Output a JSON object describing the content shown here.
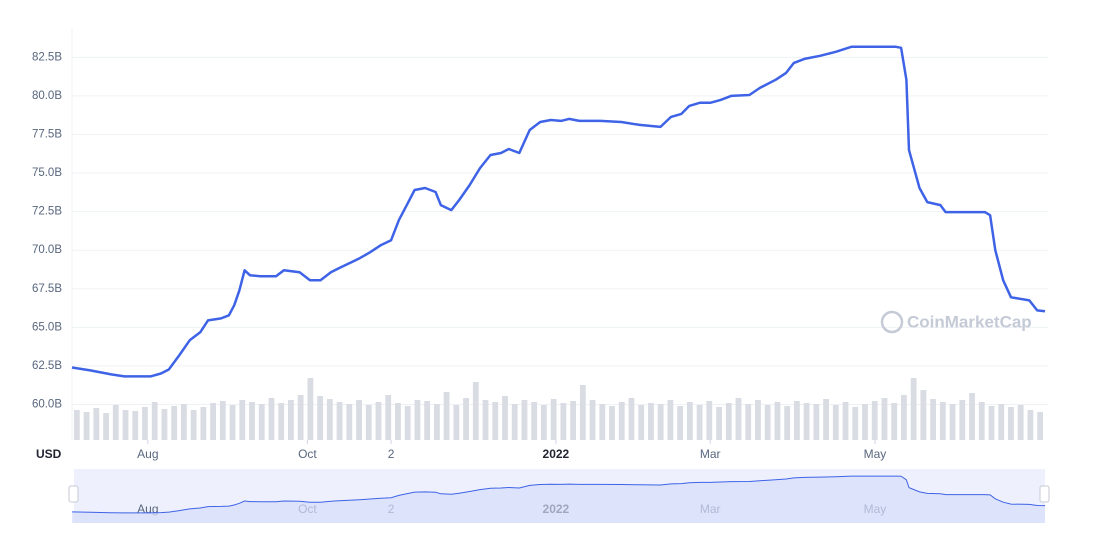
{
  "chart_data": {
    "type": "line",
    "currency_label": "USD",
    "watermark": "CoinMarketCap",
    "xlim": [
      0,
      372
    ],
    "xticks": [
      {
        "value": 29,
        "label": "Aug"
      },
      {
        "value": 90,
        "label": "Oct"
      },
      {
        "value": 122,
        "label": "2"
      },
      {
        "value": 185,
        "label": "2022"
      },
      {
        "value": 244,
        "label": "Mar"
      },
      {
        "value": 307,
        "label": "May"
      }
    ],
    "ylim": [
      57.7,
      84.4
    ],
    "yticks": [
      {
        "value": 60,
        "label": "60.0B"
      },
      {
        "value": 62.5,
        "label": "62.5B"
      },
      {
        "value": 65,
        "label": "65.0B"
      },
      {
        "value": 67.5,
        "label": "67.5B"
      },
      {
        "value": 70,
        "label": "70.0B"
      },
      {
        "value": 72.5,
        "label": "72.5B"
      },
      {
        "value": 75,
        "label": "75.0B"
      },
      {
        "value": 77.5,
        "label": "77.5B"
      },
      {
        "value": 80,
        "label": "80.0B"
      },
      {
        "value": 82.5,
        "label": "82.5B"
      }
    ],
    "grid": true,
    "color": "#3e63e6",
    "x": [
      0,
      7,
      15,
      20,
      26,
      30,
      34,
      37,
      41,
      45,
      49,
      52,
      57,
      60,
      62,
      64,
      66,
      68,
      72,
      78,
      81,
      87,
      91,
      95,
      99,
      102,
      106,
      110,
      114,
      118,
      122,
      125,
      128,
      131,
      135,
      139,
      141,
      145,
      148,
      152,
      156,
      160,
      164,
      167,
      171,
      175,
      179,
      183,
      187,
      190,
      194,
      202,
      210,
      217,
      225,
      229,
      233,
      236,
      240,
      244,
      248,
      252,
      259,
      263,
      269,
      273,
      276,
      280,
      286,
      292,
      298,
      305,
      315,
      317,
      319,
      320,
      324,
      327,
      332,
      334,
      341,
      349,
      351,
      353,
      356,
      359,
      366,
      369,
      372
    ],
    "values": [
      62.4,
      62.21,
      61.95,
      61.82,
      61.82,
      61.82,
      62.01,
      62.27,
      63.18,
      64.16,
      64.68,
      65.45,
      65.58,
      65.78,
      66.43,
      67.4,
      68.7,
      68.38,
      68.31,
      68.31,
      68.7,
      68.57,
      68.05,
      68.05,
      68.57,
      68.83,
      69.16,
      69.48,
      69.87,
      70.32,
      70.65,
      71.95,
      72.92,
      73.9,
      74.03,
      73.77,
      72.92,
      72.6,
      73.25,
      74.22,
      75.32,
      76.17,
      76.3,
      76.56,
      76.3,
      77.79,
      78.31,
      78.44,
      78.38,
      78.51,
      78.38,
      78.38,
      78.31,
      78.12,
      77.99,
      78.64,
      78.83,
      79.35,
      79.55,
      79.55,
      79.74,
      80.0,
      80.06,
      80.52,
      81.04,
      81.49,
      82.14,
      82.4,
      82.6,
      82.86,
      83.18,
      83.18,
      83.18,
      83.12,
      81.04,
      76.49,
      74.03,
      73.12,
      72.92,
      72.47,
      72.47,
      72.47,
      72.27,
      70.0,
      68.05,
      66.95,
      66.75,
      66.1,
      66.04
    ],
    "volume": {
      "color": "#d9dde3",
      "vlim": [
        0,
        100
      ],
      "values": [
        30,
        28,
        32,
        27,
        35,
        30,
        29,
        33,
        38,
        31,
        34,
        36,
        30,
        33,
        37,
        39,
        35,
        40,
        38,
        36,
        42,
        37,
        40,
        45,
        62,
        44,
        41,
        38,
        36,
        40,
        35,
        38,
        45,
        37,
        34,
        40,
        39,
        36,
        48,
        35,
        42,
        58,
        40,
        38,
        44,
        36,
        40,
        38,
        35,
        41,
        37,
        39,
        55,
        40,
        36,
        34,
        38,
        42,
        35,
        37,
        36,
        40,
        34,
        38,
        35,
        39,
        33,
        37,
        42,
        36,
        40,
        35,
        38,
        34,
        39,
        37,
        36,
        41,
        35,
        38,
        33,
        36,
        39,
        42,
        37,
        45,
        62,
        50,
        41,
        38,
        36,
        40,
        47,
        38,
        34,
        36,
        33,
        35,
        30,
        28
      ]
    }
  }
}
